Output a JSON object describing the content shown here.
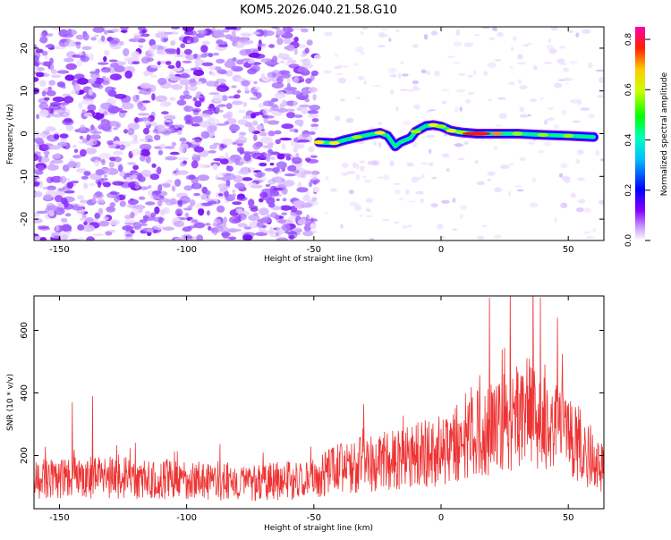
{
  "title": "KOM5.2026.040.21.58.G10",
  "chart_data": [
    {
      "type": "heatmap",
      "xlabel": "Height of straight line (km)",
      "ylabel": "Frequency (Hz)",
      "xlim": [
        -160,
        64
      ],
      "ylim": [
        -25,
        25
      ],
      "x_ticks": [
        -150,
        -100,
        -50,
        0,
        50
      ],
      "y_ticks": [
        -20,
        -10,
        0,
        10,
        20
      ],
      "colorbar": {
        "label": "Normalized spectral amplitude",
        "range": [
          0.0,
          0.85
        ],
        "ticks": [
          0.0,
          0.2,
          0.4,
          0.6,
          0.8
        ],
        "tick_labels": [
          "0.0",
          "0.2",
          "0.4",
          "0.6",
          "0.8"
        ],
        "colormap": [
          "#ffffff",
          "#8800ff",
          "#0000ff",
          "#00ffff",
          "#00ff00",
          "#ffff00",
          "#ff0000",
          "#ff00aa"
        ]
      },
      "noise_region_x": [
        -160,
        -50
      ],
      "signal_trace": [
        {
          "x": -48,
          "y": -2.0,
          "amp": 0.55
        },
        {
          "x": -42,
          "y": -2.2,
          "amp": 0.6
        },
        {
          "x": -38,
          "y": -1.5,
          "amp": 0.4
        },
        {
          "x": -33,
          "y": -0.8,
          "amp": 0.5
        },
        {
          "x": -28,
          "y": -0.2,
          "amp": 0.4
        },
        {
          "x": -24,
          "y": 0.2,
          "amp": 0.55
        },
        {
          "x": -21,
          "y": -0.5,
          "amp": 0.4
        },
        {
          "x": -18,
          "y": -3.0,
          "amp": 0.35
        },
        {
          "x": -16,
          "y": -2.0,
          "amp": 0.4
        },
        {
          "x": -12,
          "y": -1.0,
          "amp": 0.35
        },
        {
          "x": -10,
          "y": 0.5,
          "amp": 0.45
        },
        {
          "x": -6,
          "y": 1.8,
          "amp": 0.4
        },
        {
          "x": -3,
          "y": 2.0,
          "amp": 0.55
        },
        {
          "x": 0,
          "y": 1.7,
          "amp": 0.5
        },
        {
          "x": 4,
          "y": 0.7,
          "amp": 0.55
        },
        {
          "x": 8,
          "y": 0.3,
          "amp": 0.45
        },
        {
          "x": 14,
          "y": 0.0,
          "amp": 0.8
        },
        {
          "x": 22,
          "y": 0.0,
          "amp": 0.65
        },
        {
          "x": 30,
          "y": 0.0,
          "amp": 0.5
        },
        {
          "x": 40,
          "y": -0.3,
          "amp": 0.45
        },
        {
          "x": 50,
          "y": -0.5,
          "amp": 0.45
        },
        {
          "x": 60,
          "y": -0.8,
          "amp": 0.4
        }
      ]
    },
    {
      "type": "line",
      "xlabel": "Height of straight line (km)",
      "ylabel": "SNR (10 * v/v)",
      "xlim": [
        -160,
        64
      ],
      "ylim": [
        30,
        710
      ],
      "x_ticks": [
        -150,
        -100,
        -50,
        0,
        50
      ],
      "y_ticks": [
        200,
        400,
        600
      ],
      "series": [
        {
          "name": "SNR",
          "color": "#ee3333",
          "baseline_x": [
            -160,
            -130,
            -100,
            -70,
            -50,
            -40,
            -20,
            0,
            20,
            35,
            45,
            55,
            64
          ],
          "baseline_y": [
            125,
            130,
            120,
            115,
            125,
            160,
            185,
            215,
            290,
            340,
            300,
            230,
            150
          ],
          "peaks": [
            {
              "x": -145,
              "y": 370
            },
            {
              "x": -137,
              "y": 390
            },
            {
              "x": 19,
              "y": 705
            },
            {
              "x": 39,
              "y": 705
            }
          ]
        }
      ]
    }
  ]
}
